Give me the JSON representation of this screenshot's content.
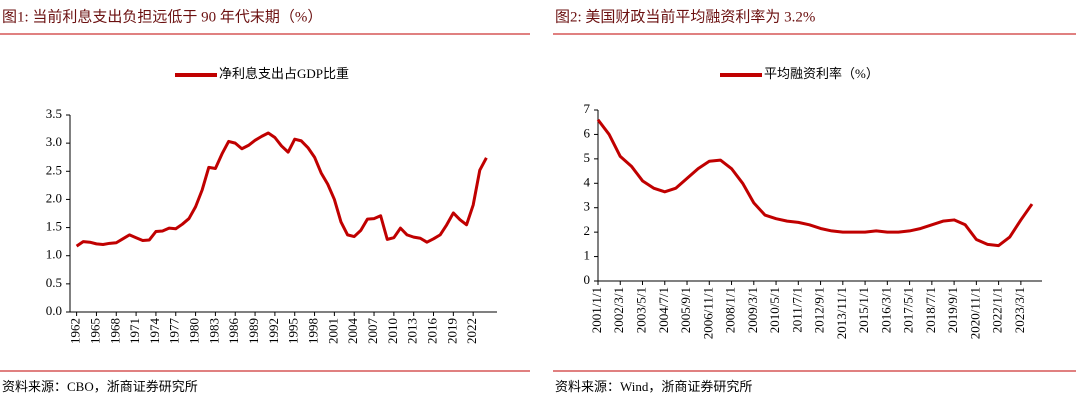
{
  "chart_data": [
    {
      "type": "line",
      "title": "图1:   当前利息支出负担远低于 90 年代末期（%）",
      "source": "资料来源：CBO，浙商证券研究所",
      "x": [
        1962,
        1963,
        1964,
        1965,
        1966,
        1967,
        1968,
        1969,
        1970,
        1971,
        1972,
        1973,
        1974,
        1975,
        1976,
        1977,
        1978,
        1979,
        1980,
        1981,
        1982,
        1983,
        1984,
        1985,
        1986,
        1987,
        1988,
        1989,
        1990,
        1991,
        1992,
        1993,
        1994,
        1995,
        1996,
        1997,
        1998,
        1999,
        2000,
        2001,
        2002,
        2003,
        2004,
        2005,
        2006,
        2007,
        2008,
        2009,
        2010,
        2011,
        2012,
        2013,
        2014,
        2015,
        2016,
        2017,
        2018,
        2019,
        2020,
        2021,
        2022,
        2023,
        2024
      ],
      "series": [
        {
          "name": "净利息支出占GDP比重",
          "color": "#c00000",
          "values": [
            1.17,
            1.25,
            1.24,
            1.21,
            1.2,
            1.22,
            1.23,
            1.3,
            1.37,
            1.32,
            1.27,
            1.28,
            1.43,
            1.44,
            1.49,
            1.48,
            1.56,
            1.66,
            1.87,
            2.17,
            2.57,
            2.55,
            2.81,
            3.03,
            3.0,
            2.9,
            2.96,
            3.05,
            3.12,
            3.18,
            3.1,
            2.95,
            2.84,
            3.07,
            3.04,
            2.92,
            2.75,
            2.47,
            2.27,
            2.0,
            1.6,
            1.37,
            1.34,
            1.45,
            1.65,
            1.66,
            1.71,
            1.29,
            1.32,
            1.49,
            1.37,
            1.33,
            1.31,
            1.24,
            1.3,
            1.37,
            1.55,
            1.76,
            1.64,
            1.55,
            1.9,
            2.52,
            2.74
          ]
        }
      ],
      "xlim": [
        1961,
        2025
      ],
      "xticks": [
        1962,
        1965,
        1968,
        1971,
        1974,
        1977,
        1980,
        1983,
        1986,
        1989,
        1992,
        1995,
        1998,
        2001,
        2004,
        2007,
        2010,
        2013,
        2016,
        2019,
        2022
      ],
      "ylim": [
        0,
        3.5
      ],
      "yticks": [
        {
          "value": 0,
          "label": "0.0"
        },
        0.5,
        {
          "value": 1,
          "label": "1.0"
        },
        1.5,
        {
          "value": 2,
          "label": "2.0"
        },
        2.5,
        {
          "value": 3,
          "label": "3.0"
        },
        3.5
      ],
      "grid": false
    },
    {
      "type": "line",
      "title": "图2:   美国财政当前平均融资利率为 3.2%",
      "source": "资料来源：Wind，浙商证券研究所",
      "categories": [
        "2001/1/1",
        null,
        "2002/3/1",
        null,
        "2003/5/1",
        null,
        "2004/7/1",
        null,
        "2005/9/1",
        null,
        "2006/11/1",
        null,
        "2008/1/1",
        null,
        "2009/3/1",
        null,
        "2010/5/1",
        null,
        "2011/7/1",
        null,
        "2012/9/1",
        null,
        "2013/11/1",
        null,
        "2015/1/1",
        null,
        "2016/3/1",
        null,
        "2017/5/1",
        null,
        "2018/7/1",
        null,
        "2019/9/1",
        null,
        "2020/11/1",
        null,
        "2022/1/1",
        null,
        "2023/3/1",
        null
      ],
      "series": [
        {
          "name": "平均融资利率（%）",
          "color": "#c00000",
          "values": [
            6.6,
            6.0,
            5.1,
            4.7,
            4.1,
            3.8,
            3.65,
            3.8,
            4.2,
            4.6,
            4.9,
            4.95,
            4.6,
            4.0,
            3.2,
            2.7,
            2.55,
            2.45,
            2.4,
            2.3,
            2.15,
            2.05,
            2.0,
            2.0,
            2.0,
            2.05,
            2.0,
            2.0,
            2.05,
            2.15,
            2.3,
            2.45,
            2.5,
            2.3,
            1.7,
            1.5,
            1.45,
            1.8,
            2.5,
            3.15
          ]
        }
      ],
      "ylim": [
        0,
        7
      ],
      "yticks": [
        0,
        1,
        2,
        3,
        4,
        5,
        6,
        7
      ],
      "grid": false
    }
  ]
}
